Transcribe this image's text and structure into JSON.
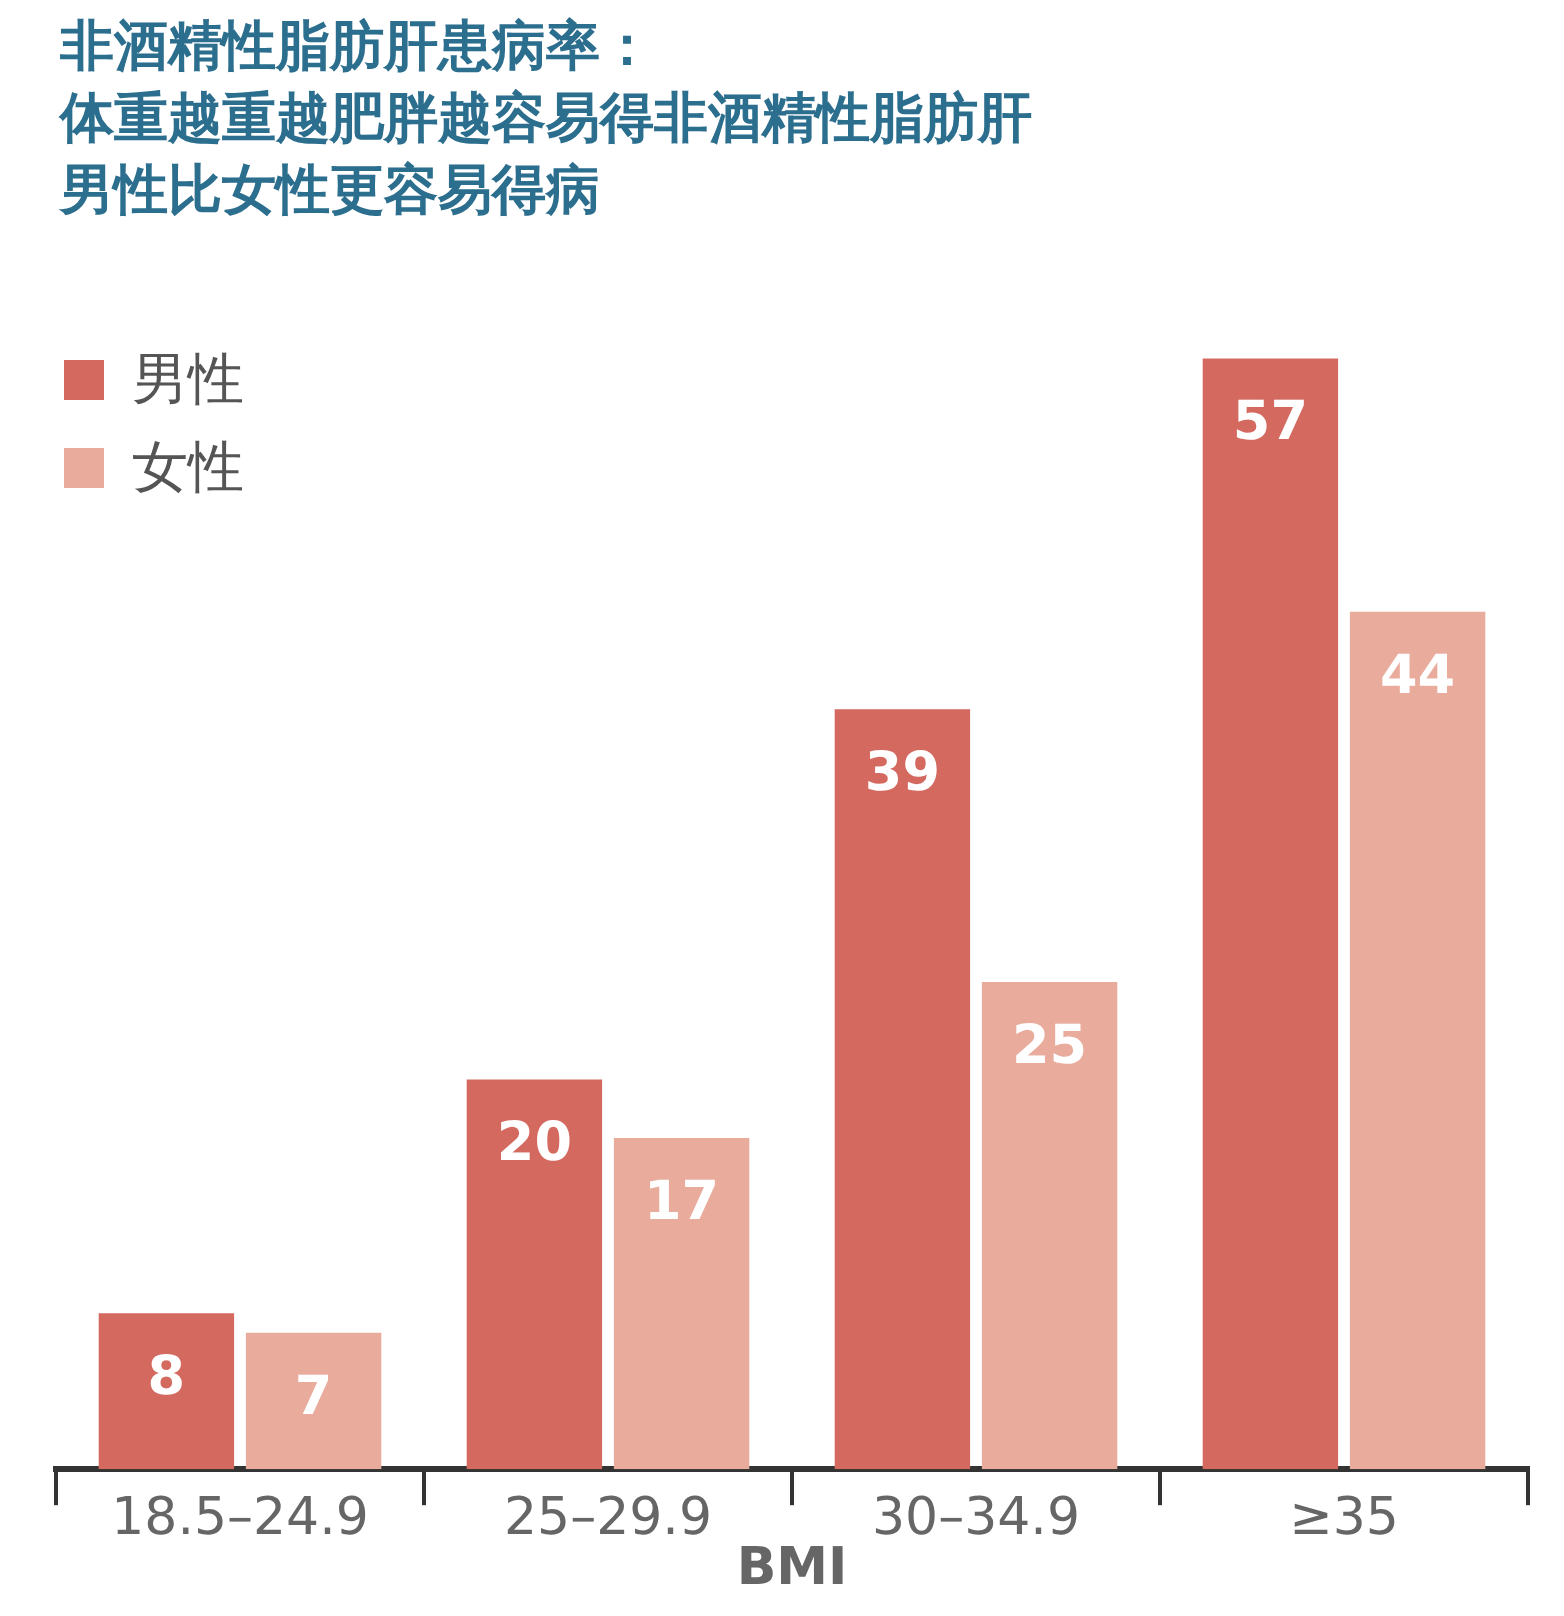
{
  "chart_data": {
    "type": "bar",
    "title": "非酒精性脂肪肝患病率：",
    "subtitle": "体重越重越肥胖越容易得非酒精性脂肪肝男性比女性更容易得病",
    "xlabel": "BMI",
    "categories": [
      "18.5–24.9",
      "25–29.9",
      "30–34.9",
      "≥35"
    ],
    "series": [
      {
        "name": "男性",
        "color": "#d4695f",
        "values": [
          8,
          20,
          39,
          57
        ]
      },
      {
        "name": "女性",
        "color": "#e8ab9c",
        "values": [
          7,
          17,
          25,
          44
        ]
      }
    ],
    "data_labels": true,
    "legend": "top left",
    "grid": false,
    "tick_labels": "x"
  }
}
